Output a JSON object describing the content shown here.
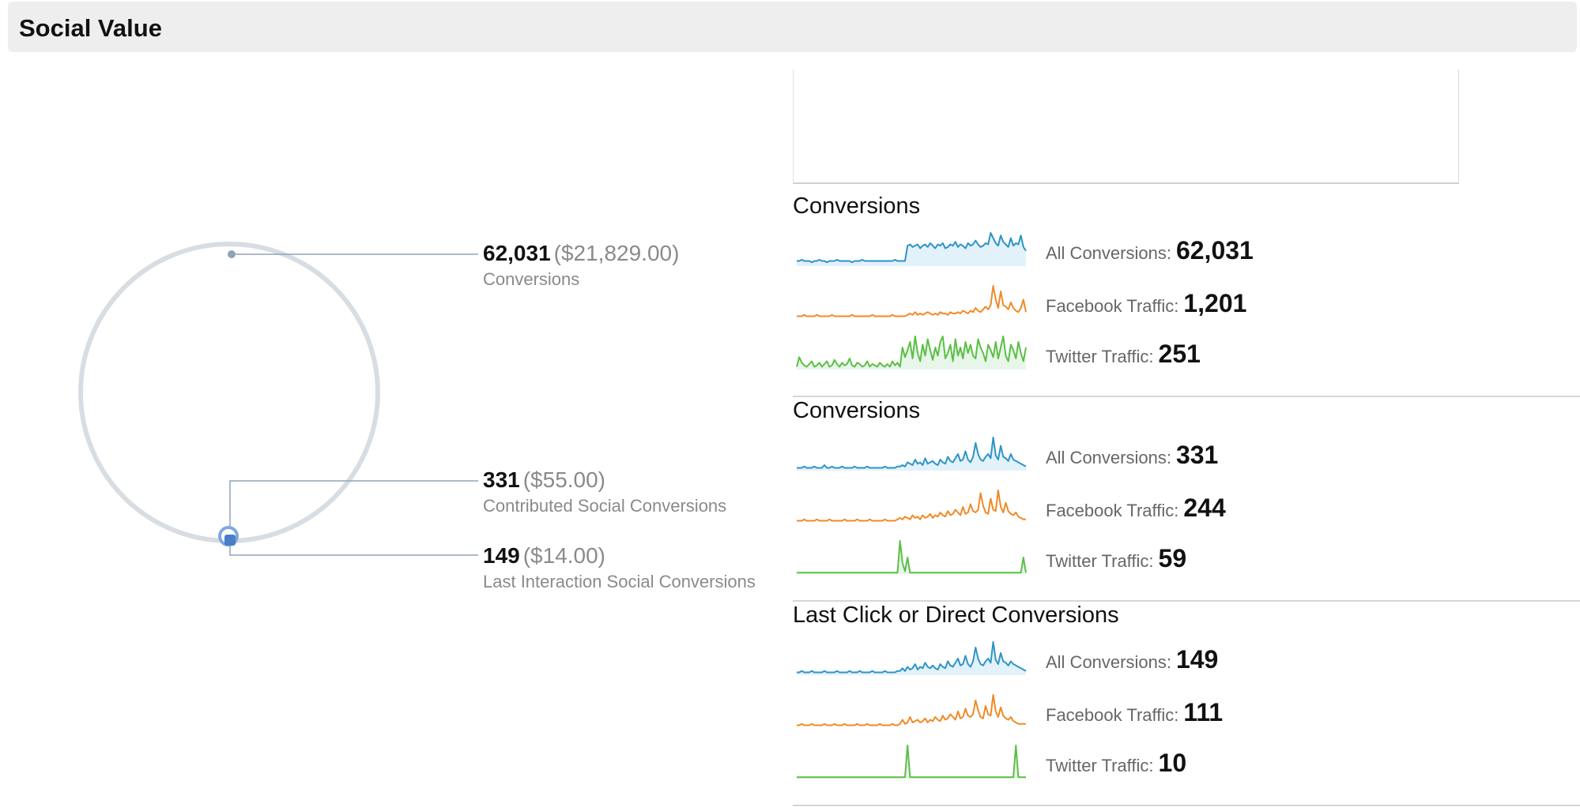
{
  "header": {
    "title": "Social Value"
  },
  "chart_data": [
    {
      "type": "pie",
      "title": "",
      "callouts": [
        {
          "value": "62,031",
          "money": "($21,829.00)",
          "label": "Conversions",
          "numeric": 62031
        },
        {
          "value": "331",
          "money": "($55.00)",
          "label": "Contributed Social Conversions",
          "numeric": 331
        },
        {
          "value": "149",
          "money": "($14.00)",
          "label": "Last Interaction Social Conversions",
          "numeric": 149
        }
      ],
      "colors": {
        "ring": "#d7dde3",
        "marker": "#5b8fd3",
        "leader": "#8fa3b8"
      }
    },
    {
      "type": "line",
      "title": "Conversions",
      "series": [
        {
          "name": "All Conversions:",
          "total": "62,031",
          "color": "#2d94c8",
          "fill": "#e3f1fa",
          "values": [
            4,
            4,
            5,
            4,
            4,
            4,
            3,
            4,
            4,
            5,
            4,
            4,
            3,
            4,
            4,
            4,
            5,
            4,
            4,
            4,
            4,
            4,
            3,
            4,
            4,
            4,
            5,
            4,
            4,
            4,
            4,
            4,
            4,
            4,
            4,
            4,
            4,
            4,
            4,
            5,
            4,
            4,
            4,
            4,
            16,
            17,
            15,
            16,
            17,
            14,
            16,
            17,
            15,
            18,
            16,
            14,
            17,
            16,
            18,
            14,
            15,
            17,
            16,
            19,
            15,
            17,
            16,
            14,
            18,
            16,
            17,
            20,
            17,
            15,
            16,
            18,
            17,
            26,
            22,
            18,
            16,
            24,
            19,
            17,
            15,
            22,
            16,
            18,
            17,
            24,
            15,
            12
          ]
        },
        {
          "name": "Facebook Traffic:",
          "total": "1,201",
          "color": "#f08a26",
          "fill": "none",
          "values": [
            2,
            2,
            2,
            3,
            2,
            2,
            2,
            2,
            3,
            2,
            2,
            2,
            2,
            2,
            3,
            2,
            2,
            2,
            2,
            2,
            2,
            2,
            3,
            2,
            2,
            2,
            2,
            2,
            2,
            2,
            3,
            2,
            2,
            2,
            2,
            2,
            2,
            2,
            3,
            2,
            2,
            2,
            2,
            2,
            3,
            4,
            3,
            5,
            3,
            4,
            3,
            4,
            5,
            4,
            3,
            4,
            3,
            5,
            4,
            4,
            3,
            5,
            4,
            4,
            5,
            4,
            6,
            5,
            4,
            6,
            5,
            8,
            6,
            5,
            7,
            9,
            7,
            10,
            24,
            14,
            8,
            20,
            10,
            9,
            7,
            12,
            8,
            6,
            5,
            8,
            14,
            5
          ]
        },
        {
          "name": "Twitter Traffic:",
          "total": "251",
          "color": "#5bbf45",
          "fill": "#e8f6ea",
          "values": [
            2,
            9,
            5,
            3,
            2,
            4,
            6,
            2,
            3,
            5,
            2,
            4,
            6,
            2,
            3,
            7,
            4,
            2,
            5,
            3,
            4,
            8,
            3,
            2,
            5,
            4,
            2,
            3,
            6,
            2,
            4,
            3,
            2,
            5,
            3,
            2,
            4,
            2,
            6,
            3,
            5,
            2,
            16,
            9,
            14,
            20,
            8,
            24,
            12,
            6,
            18,
            10,
            22,
            14,
            7,
            16,
            10,
            20,
            24,
            8,
            12,
            18,
            6,
            22,
            10,
            16,
            8,
            20,
            12,
            18,
            10,
            8,
            22,
            16,
            12,
            6,
            18,
            14,
            9,
            20,
            8,
            16,
            24,
            10,
            6,
            18,
            14,
            8,
            20,
            12,
            6,
            16
          ]
        }
      ]
    },
    {
      "type": "line",
      "title": "Conversions",
      "series": [
        {
          "name": "All Conversions:",
          "total": "331",
          "color": "#2d94c8",
          "fill": "#e3f1fa",
          "values": [
            2,
            2,
            2,
            3,
            2,
            2,
            2,
            3,
            2,
            2,
            2,
            4,
            2,
            2,
            3,
            2,
            2,
            2,
            3,
            2,
            2,
            2,
            2,
            3,
            2,
            2,
            2,
            2,
            3,
            2,
            2,
            2,
            2,
            2,
            2,
            3,
            2,
            2,
            2,
            2,
            3,
            3,
            4,
            3,
            6,
            5,
            4,
            8,
            5,
            6,
            4,
            9,
            5,
            6,
            7,
            5,
            4,
            8,
            6,
            5,
            10,
            7,
            6,
            9,
            12,
            7,
            8,
            14,
            8,
            6,
            10,
            20,
            12,
            8,
            7,
            10,
            12,
            9,
            24,
            11,
            8,
            18,
            10,
            9,
            7,
            12,
            8,
            7,
            6,
            5,
            4,
            3
          ]
        },
        {
          "name": "Facebook Traffic:",
          "total": "244",
          "color": "#f08a26",
          "fill": "none",
          "values": [
            2,
            2,
            2,
            3,
            2,
            2,
            2,
            2,
            3,
            2,
            2,
            2,
            2,
            3,
            2,
            2,
            2,
            2,
            2,
            3,
            2,
            2,
            2,
            2,
            3,
            2,
            2,
            2,
            2,
            3,
            2,
            2,
            2,
            2,
            2,
            3,
            2,
            2,
            2,
            2,
            3,
            4,
            3,
            5,
            4,
            3,
            6,
            4,
            5,
            3,
            6,
            4,
            5,
            7,
            4,
            6,
            5,
            8,
            6,
            5,
            9,
            6,
            7,
            10,
            8,
            6,
            12,
            7,
            8,
            14,
            9,
            8,
            10,
            22,
            13,
            8,
            7,
            18,
            10,
            9,
            24,
            12,
            8,
            15,
            9,
            7,
            6,
            8,
            5,
            4,
            3,
            3
          ]
        },
        {
          "name": "Twitter Traffic:",
          "total": "59",
          "color": "#5bbf45",
          "fill": "#e8f6ea",
          "values": [
            1,
            1,
            1,
            1,
            1,
            1,
            1,
            1,
            1,
            1,
            1,
            1,
            1,
            1,
            1,
            1,
            1,
            1,
            1,
            1,
            1,
            1,
            1,
            1,
            1,
            1,
            1,
            1,
            1,
            1,
            1,
            1,
            1,
            1,
            1,
            1,
            1,
            1,
            1,
            1,
            1,
            24,
            8,
            2,
            12,
            1,
            1,
            1,
            1,
            1,
            1,
            1,
            1,
            1,
            1,
            1,
            1,
            1,
            1,
            1,
            1,
            1,
            1,
            1,
            1,
            1,
            1,
            1,
            1,
            1,
            1,
            1,
            1,
            1,
            1,
            1,
            1,
            1,
            1,
            1,
            1,
            1,
            1,
            1,
            1,
            1,
            1,
            1,
            1,
            1,
            12,
            1
          ]
        }
      ]
    },
    {
      "type": "line",
      "title": "Last Click or Direct Conversions",
      "series": [
        {
          "name": "All Conversions:",
          "total": "149",
          "color": "#2d94c8",
          "fill": "#e3f1fa",
          "values": [
            2,
            2,
            3,
            2,
            2,
            2,
            3,
            2,
            2,
            2,
            2,
            3,
            2,
            2,
            2,
            2,
            3,
            2,
            2,
            2,
            2,
            3,
            2,
            2,
            2,
            3,
            2,
            2,
            2,
            2,
            3,
            2,
            2,
            2,
            2,
            3,
            2,
            2,
            2,
            2,
            3,
            3,
            5,
            3,
            6,
            4,
            5,
            8,
            4,
            6,
            5,
            9,
            6,
            5,
            7,
            5,
            4,
            8,
            6,
            5,
            10,
            7,
            6,
            9,
            12,
            7,
            8,
            14,
            8,
            6,
            10,
            20,
            12,
            8,
            7,
            10,
            12,
            9,
            24,
            11,
            8,
            16,
            10,
            9,
            7,
            10,
            8,
            7,
            6,
            5,
            4,
            3
          ]
        },
        {
          "name": "Facebook Traffic:",
          "total": "111",
          "color": "#f08a26",
          "fill": "none",
          "values": [
            2,
            2,
            3,
            2,
            2,
            2,
            3,
            2,
            2,
            2,
            2,
            3,
            2,
            2,
            2,
            3,
            2,
            2,
            2,
            3,
            2,
            2,
            2,
            2,
            3,
            2,
            2,
            2,
            3,
            2,
            2,
            2,
            2,
            3,
            2,
            2,
            2,
            2,
            3,
            2,
            2,
            3,
            6,
            3,
            4,
            8,
            4,
            5,
            6,
            4,
            5,
            7,
            4,
            6,
            5,
            8,
            6,
            5,
            9,
            6,
            7,
            10,
            8,
            6,
            12,
            7,
            8,
            14,
            9,
            8,
            10,
            20,
            13,
            8,
            7,
            16,
            10,
            9,
            24,
            12,
            8,
            15,
            9,
            7,
            6,
            8,
            5,
            4,
            3,
            3,
            3,
            3
          ]
        },
        {
          "name": "Twitter Traffic:",
          "total": "10",
          "color": "#5bbf45",
          "fill": "#e8f6ea",
          "values": [
            1,
            1,
            1,
            1,
            1,
            1,
            1,
            1,
            1,
            1,
            1,
            1,
            1,
            1,
            1,
            1,
            1,
            1,
            1,
            1,
            1,
            1,
            1,
            1,
            1,
            1,
            1,
            1,
            1,
            1,
            1,
            1,
            1,
            1,
            1,
            1,
            1,
            1,
            1,
            1,
            1,
            1,
            1,
            1,
            24,
            1,
            1,
            1,
            1,
            1,
            1,
            1,
            1,
            1,
            1,
            1,
            1,
            1,
            1,
            1,
            1,
            1,
            1,
            1,
            1,
            1,
            1,
            1,
            1,
            1,
            1,
            1,
            1,
            1,
            1,
            1,
            1,
            1,
            1,
            1,
            1,
            1,
            1,
            1,
            1,
            1,
            1,
            24,
            1,
            1,
            1,
            1
          ]
        }
      ]
    }
  ]
}
